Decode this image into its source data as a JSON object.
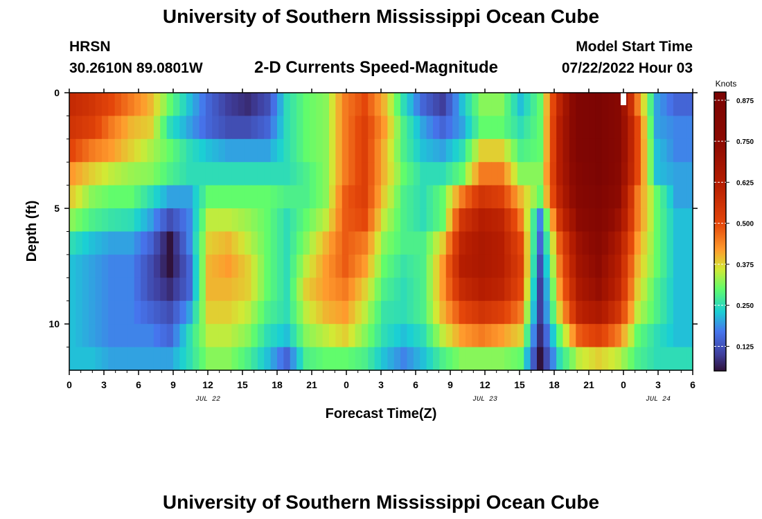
{
  "page": {
    "title": "University of Southern Mississippi Ocean Cube",
    "bottom_title": "University of Southern Mississippi Ocean Cube",
    "station": "HRSN",
    "coords": "30.2610N  89.0801W",
    "subtitle": "2-D Currents Speed-Magnitude",
    "model_start_label": "Model Start Time",
    "model_start_value": "07/22/2022 Hour 03"
  },
  "chart_data": {
    "type": "heatmap",
    "xlabel": "Forecast Time(Z)",
    "ylabel": "Depth (ft)",
    "x_range_hours": [
      0,
      54
    ],
    "x_ticks": [
      {
        "hour": 0,
        "label": "0"
      },
      {
        "hour": 3,
        "label": "3"
      },
      {
        "hour": 6,
        "label": "6"
      },
      {
        "hour": 9,
        "label": "9"
      },
      {
        "hour": 12,
        "label": "12"
      },
      {
        "hour": 15,
        "label": "15"
      },
      {
        "hour": 18,
        "label": "18"
      },
      {
        "hour": 21,
        "label": "21"
      },
      {
        "hour": 24,
        "label": "0"
      },
      {
        "hour": 27,
        "label": "3"
      },
      {
        "hour": 30,
        "label": "6"
      },
      {
        "hour": 33,
        "label": "9"
      },
      {
        "hour": 36,
        "label": "12"
      },
      {
        "hour": 39,
        "label": "15"
      },
      {
        "hour": 42,
        "label": "18"
      },
      {
        "hour": 45,
        "label": "21"
      },
      {
        "hour": 48,
        "label": "0"
      },
      {
        "hour": 51,
        "label": "3"
      },
      {
        "hour": 54,
        "label": "6"
      }
    ],
    "date_labels": [
      {
        "hour": 12,
        "label": "JUL 22"
      },
      {
        "hour": 36,
        "label": "JUL 23"
      },
      {
        "hour": 51,
        "label": "JUL 24"
      }
    ],
    "y_range_ft": [
      0,
      12
    ],
    "y_ticks": [
      {
        "value": 0,
        "label": "0"
      },
      {
        "value": 5,
        "label": "5"
      },
      {
        "value": 10,
        "label": "10"
      }
    ],
    "colorbar": {
      "label": "Knots",
      "range": [
        0.05,
        0.9
      ],
      "ticks": [
        {
          "value": 0.125,
          "label": "0.125"
        },
        {
          "value": 0.25,
          "label": "0.250"
        },
        {
          "value": 0.375,
          "label": "0.375"
        },
        {
          "value": 0.5,
          "label": "0.500"
        },
        {
          "value": 0.625,
          "label": "0.625"
        },
        {
          "value": 0.75,
          "label": "0.750"
        },
        {
          "value": 0.875,
          "label": "0.875"
        }
      ],
      "stops": [
        {
          "v": 0.05,
          "c": "#30123b"
        },
        {
          "v": 0.1,
          "c": "#3f3e9c"
        },
        {
          "v": 0.17,
          "c": "#4675ed"
        },
        {
          "v": 0.23,
          "c": "#1bcfd4"
        },
        {
          "v": 0.3,
          "c": "#61fc6c"
        },
        {
          "v": 0.36,
          "c": "#d2e935"
        },
        {
          "v": 0.42,
          "c": "#fe9b2d"
        },
        {
          "v": 0.5,
          "c": "#e4460a"
        },
        {
          "v": 0.62,
          "c": "#b51d01"
        },
        {
          "v": 0.75,
          "c": "#8c0a02"
        },
        {
          "v": 0.9,
          "c": "#7a0403"
        }
      ]
    },
    "depth_rows_ft": [
      0.5,
      1.5,
      2.5,
      3.5,
      4.5,
      5.5,
      6.5,
      7.5,
      8.5,
      9.5,
      10.5,
      11.5
    ],
    "speed_knots_by_row": [
      [
        0.58,
        0.55,
        0.5,
        0.45,
        0.4,
        0.3,
        0.22,
        0.15,
        0.1,
        0.08,
        0.12,
        0.25,
        0.3,
        0.32,
        0.45,
        0.5,
        0.4,
        0.25,
        0.15,
        0.1,
        0.22,
        0.32,
        0.32,
        0.22,
        0.3,
        0.6,
        0.85,
        0.88,
        0.8,
        0.45,
        0.2,
        0.15
      ],
      [
        0.55,
        0.52,
        0.45,
        0.4,
        0.38,
        0.25,
        0.2,
        0.15,
        0.12,
        0.12,
        0.15,
        0.25,
        0.3,
        0.32,
        0.45,
        0.52,
        0.42,
        0.28,
        0.2,
        0.15,
        0.2,
        0.3,
        0.3,
        0.25,
        0.3,
        0.62,
        0.85,
        0.88,
        0.8,
        0.5,
        0.2,
        0.18
      ],
      [
        0.5,
        0.45,
        0.42,
        0.38,
        0.34,
        0.3,
        0.25,
        0.22,
        0.2,
        0.2,
        0.2,
        0.25,
        0.3,
        0.32,
        0.45,
        0.52,
        0.4,
        0.28,
        0.22,
        0.2,
        0.25,
        0.38,
        0.38,
        0.28,
        0.3,
        0.62,
        0.85,
        0.88,
        0.8,
        0.5,
        0.22,
        0.18
      ],
      [
        0.42,
        0.38,
        0.35,
        0.33,
        0.32,
        0.28,
        0.25,
        0.25,
        0.25,
        0.25,
        0.25,
        0.25,
        0.28,
        0.32,
        0.45,
        0.52,
        0.4,
        0.3,
        0.25,
        0.25,
        0.3,
        0.45,
        0.45,
        0.32,
        0.32,
        0.62,
        0.82,
        0.88,
        0.78,
        0.5,
        0.22,
        0.2
      ],
      [
        0.38,
        0.32,
        0.3,
        0.3,
        0.25,
        0.2,
        0.2,
        0.3,
        0.3,
        0.3,
        0.3,
        0.28,
        0.28,
        0.32,
        0.48,
        0.52,
        0.38,
        0.28,
        0.25,
        0.3,
        0.45,
        0.55,
        0.52,
        0.4,
        0.3,
        0.6,
        0.8,
        0.85,
        0.75,
        0.45,
        0.3,
        0.2
      ],
      [
        0.32,
        0.28,
        0.26,
        0.25,
        0.2,
        0.12,
        0.18,
        0.35,
        0.35,
        0.33,
        0.3,
        0.25,
        0.3,
        0.35,
        0.48,
        0.5,
        0.35,
        0.28,
        0.25,
        0.3,
        0.55,
        0.62,
        0.6,
        0.45,
        0.18,
        0.55,
        0.75,
        0.82,
        0.7,
        0.45,
        0.3,
        0.22
      ],
      [
        0.25,
        0.22,
        0.2,
        0.2,
        0.15,
        0.05,
        0.18,
        0.38,
        0.4,
        0.35,
        0.3,
        0.25,
        0.32,
        0.4,
        0.48,
        0.45,
        0.32,
        0.28,
        0.28,
        0.38,
        0.6,
        0.65,
        0.62,
        0.5,
        0.15,
        0.48,
        0.7,
        0.78,
        0.65,
        0.42,
        0.3,
        0.22
      ],
      [
        0.22,
        0.2,
        0.18,
        0.18,
        0.12,
        0.05,
        0.15,
        0.4,
        0.42,
        0.38,
        0.3,
        0.25,
        0.35,
        0.42,
        0.48,
        0.42,
        0.3,
        0.26,
        0.28,
        0.42,
        0.62,
        0.65,
        0.62,
        0.52,
        0.12,
        0.45,
        0.68,
        0.75,
        0.62,
        0.4,
        0.3,
        0.22
      ],
      [
        0.22,
        0.2,
        0.18,
        0.18,
        0.12,
        0.08,
        0.15,
        0.4,
        0.4,
        0.38,
        0.3,
        0.25,
        0.38,
        0.42,
        0.45,
        0.38,
        0.28,
        0.25,
        0.28,
        0.42,
        0.58,
        0.62,
        0.6,
        0.5,
        0.1,
        0.42,
        0.65,
        0.72,
        0.6,
        0.38,
        0.28,
        0.22
      ],
      [
        0.22,
        0.2,
        0.18,
        0.18,
        0.15,
        0.12,
        0.2,
        0.38,
        0.38,
        0.35,
        0.28,
        0.25,
        0.35,
        0.4,
        0.42,
        0.35,
        0.26,
        0.25,
        0.28,
        0.4,
        0.5,
        0.55,
        0.52,
        0.45,
        0.1,
        0.38,
        0.6,
        0.65,
        0.55,
        0.35,
        0.28,
        0.22
      ],
      [
        0.22,
        0.2,
        0.18,
        0.18,
        0.18,
        0.15,
        0.25,
        0.35,
        0.35,
        0.32,
        0.25,
        0.22,
        0.32,
        0.35,
        0.38,
        0.32,
        0.25,
        0.22,
        0.25,
        0.35,
        0.42,
        0.45,
        0.42,
        0.38,
        0.08,
        0.3,
        0.48,
        0.52,
        0.45,
        0.3,
        0.25,
        0.22
      ],
      [
        0.22,
        0.22,
        0.2,
        0.2,
        0.2,
        0.2,
        0.25,
        0.32,
        0.32,
        0.28,
        0.22,
        0.15,
        0.28,
        0.3,
        0.3,
        0.28,
        0.22,
        0.18,
        0.22,
        0.28,
        0.32,
        0.32,
        0.32,
        0.3,
        0.05,
        0.25,
        0.35,
        0.38,
        0.35,
        0.28,
        0.25,
        0.25
      ]
    ]
  }
}
